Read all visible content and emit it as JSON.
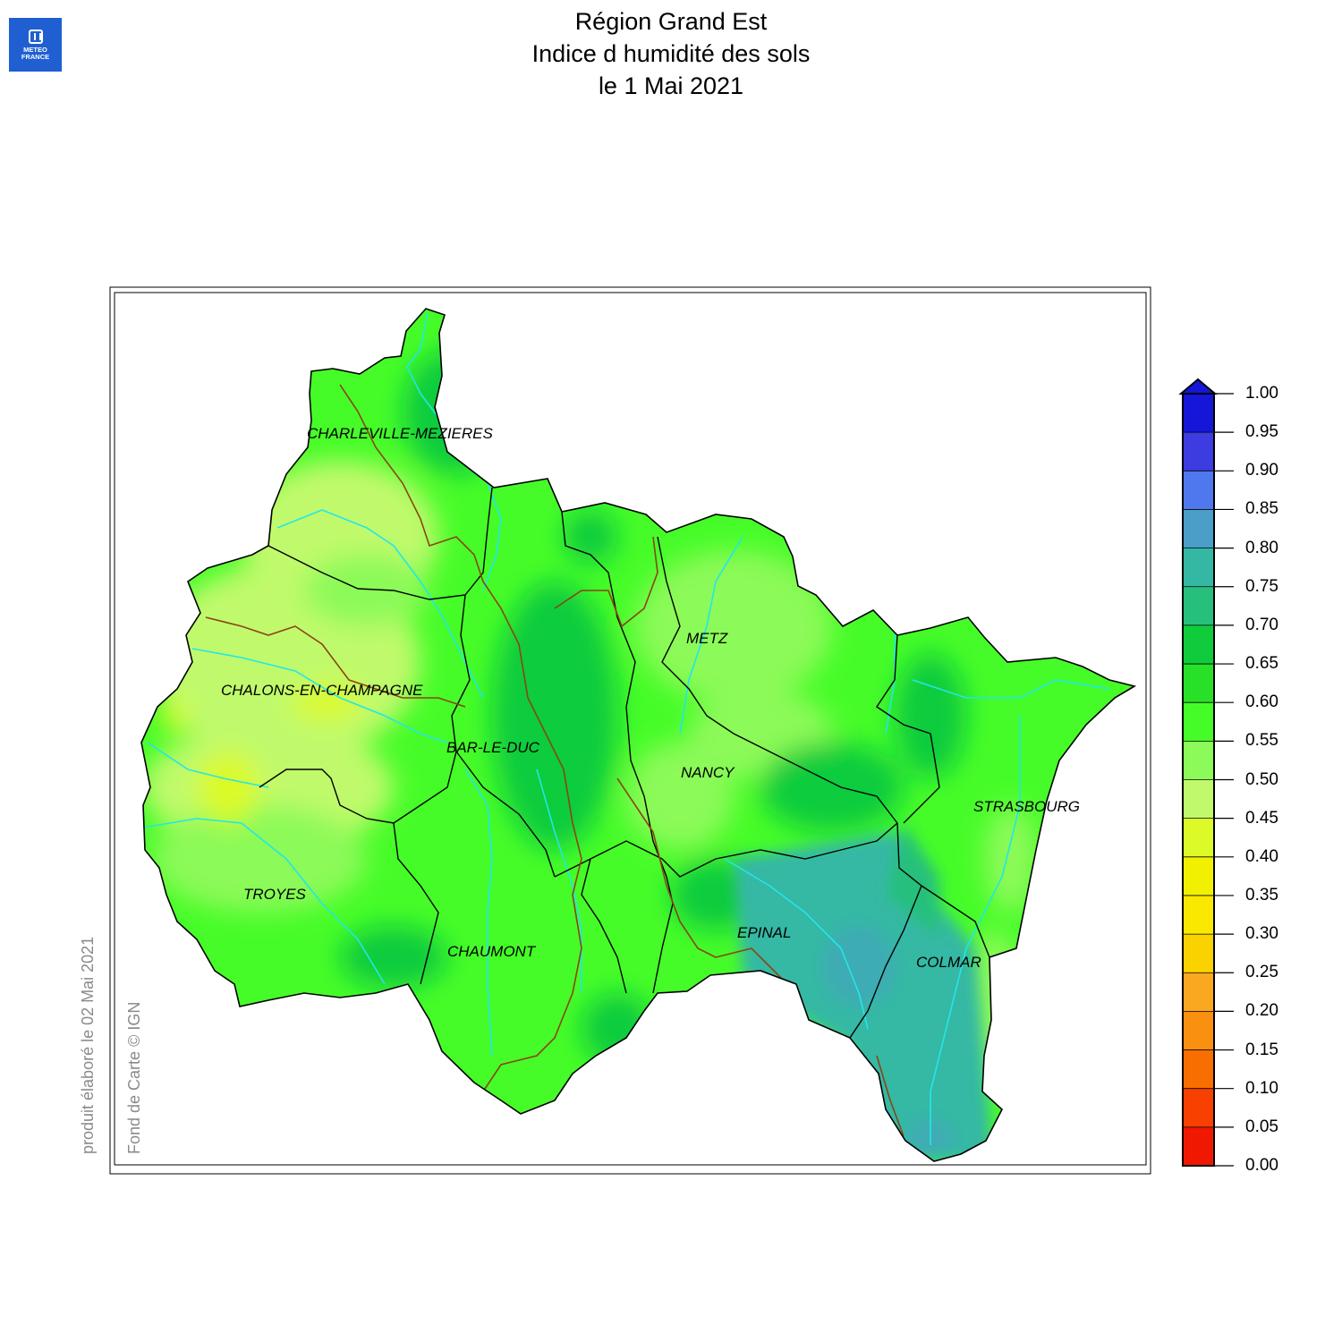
{
  "logo": {
    "line1": "METEO",
    "line2": "FRANCE"
  },
  "title": {
    "line1": "Région Grand Est",
    "line2": "Indice d humidité des sols",
    "line3": "le 1 Mai 2021"
  },
  "cities": [
    "CHARLEVILLE-MEZIERES",
    "METZ",
    "CHALONS-EN-CHAMPAGNE",
    "BAR-LE-DUC",
    "NANCY",
    "STRASBOURG",
    "TROYES",
    "EPINAL",
    "CHAUMONT",
    "COLMAR"
  ],
  "credits": {
    "produced": "produit élaboré le 02 Mai 2021",
    "basemap": "Fond de Carte © IGN"
  },
  "legend": {
    "labels": [
      "1.00",
      "0.95",
      "0.90",
      "0.85",
      "0.80",
      "0.75",
      "0.70",
      "0.65",
      "0.60",
      "0.55",
      "0.50",
      "0.45",
      "0.40",
      "0.35",
      "0.30",
      "0.25",
      "0.20",
      "0.15",
      "0.10",
      "0.05",
      "0.00"
    ],
    "colors": [
      "#1616d8",
      "#3c3ce0",
      "#5078ee",
      "#4a9ec8",
      "#34b8a4",
      "#26c07c",
      "#10cc3c",
      "#28e028",
      "#46fc28",
      "#8cfa58",
      "#c0fa6c",
      "#dcfa28",
      "#f0f000",
      "#fae800",
      "#fad200",
      "#faa820",
      "#fa9010",
      "#f86e00",
      "#f84000",
      "#f01800",
      "#e00000"
    ],
    "overflow_color": "#1616d8"
  },
  "map_colors": {
    "region_base": "#46fc28",
    "light_zone": "#c0fa6c",
    "mid_light_zone": "#8cfa58",
    "dark_zone": "#10cc3c",
    "teal_zone": "#34b8a4",
    "yellow_zone": "#dcfa28",
    "river": "#22e6ea",
    "region_boundary": "#8b4513",
    "department_boundary": "#000000"
  }
}
